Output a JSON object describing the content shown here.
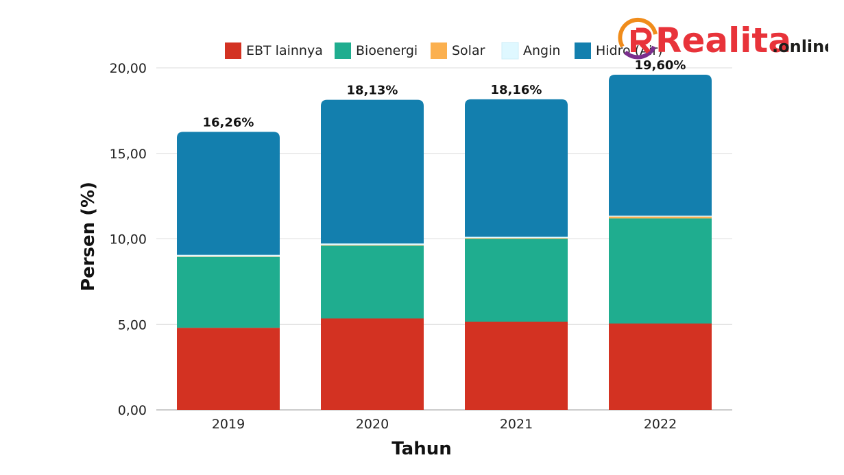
{
  "logo": {
    "main": "Realita",
    "sub": ".online"
  },
  "chart_data": {
    "type": "bar",
    "stacked": true,
    "categories": [
      "2019",
      "2020",
      "2021",
      "2022"
    ],
    "series": [
      {
        "name": "EBT lainnya",
        "color": "#d33222",
        "values": [
          4.8,
          5.35,
          5.15,
          5.05
        ]
      },
      {
        "name": "Bioenergi",
        "color": "#1fad8f",
        "values": [
          4.15,
          4.25,
          4.85,
          6.15
        ]
      },
      {
        "name": "Solar",
        "color": "#fbb04f",
        "values": [
          0.02,
          0.03,
          0.04,
          0.1
        ]
      },
      {
        "name": "Angin",
        "color": "#dff8ff",
        "values": [
          0.1,
          0.1,
          0.08,
          0.06
        ]
      },
      {
        "name": "Hidro (Air)",
        "color": "#137fae",
        "values": [
          7.19,
          8.4,
          8.04,
          8.24
        ]
      }
    ],
    "totals": [
      "16,26%",
      "18,13%",
      "18,16%",
      "19,60%"
    ],
    "y_ticks": [
      "0,00",
      "5,00",
      "10,00",
      "15,00",
      "20,00"
    ],
    "xlabel": "Tahun",
    "ylabel": "Persen (%)",
    "ylim": [
      0,
      20
    ],
    "grid": true,
    "legend_position": "top"
  }
}
